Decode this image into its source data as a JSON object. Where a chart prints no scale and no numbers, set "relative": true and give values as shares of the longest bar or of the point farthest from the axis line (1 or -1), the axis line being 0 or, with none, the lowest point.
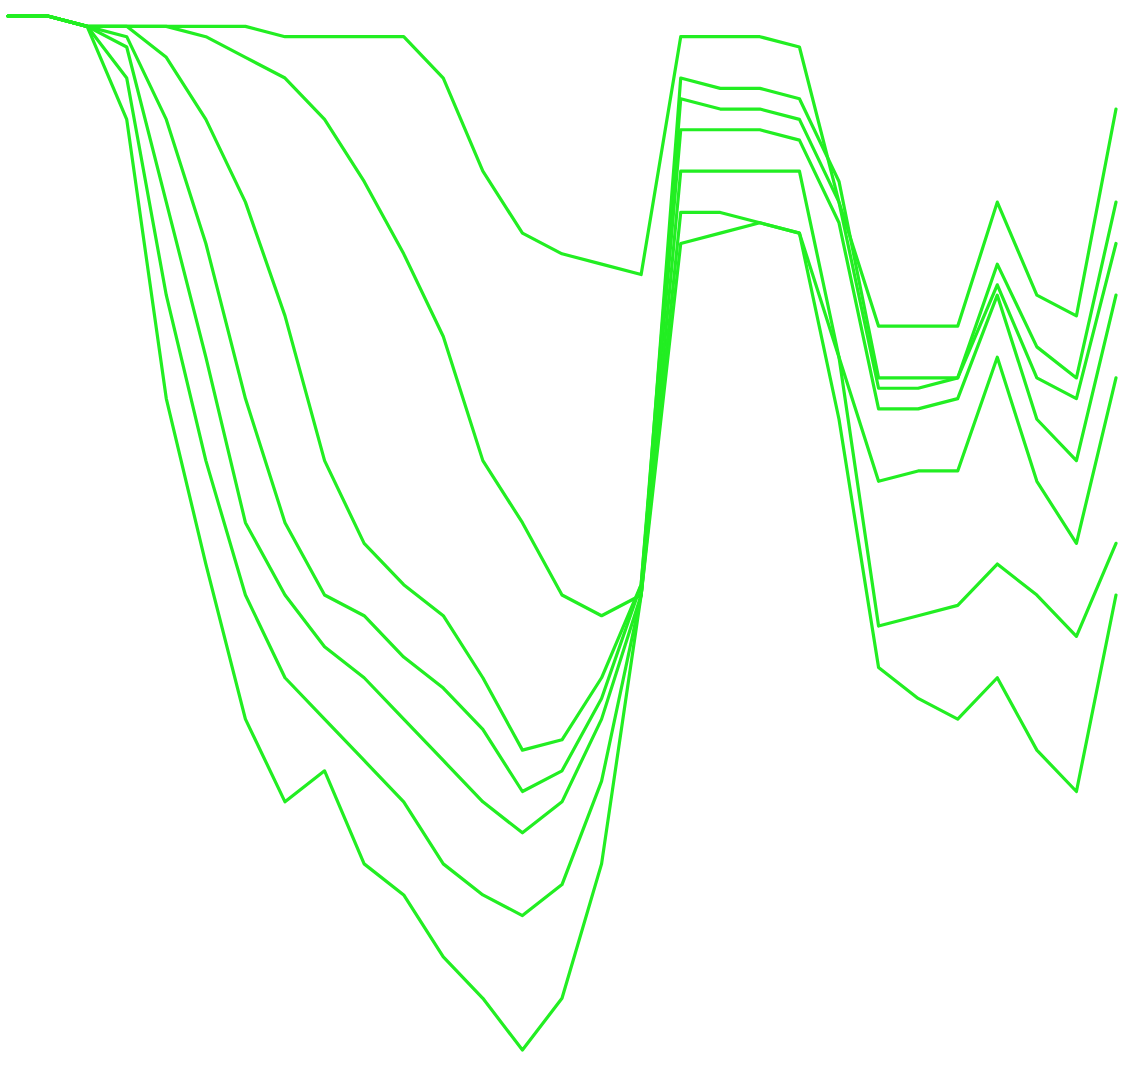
{
  "chart_data": {
    "type": "line",
    "relative": true,
    "categories": [
      null,
      null,
      null,
      null,
      null,
      null,
      null,
      null,
      null,
      null,
      null,
      null,
      null,
      null,
      null,
      null,
      null,
      null,
      null,
      null,
      null,
      null,
      null,
      null,
      null,
      null,
      null,
      null,
      null
    ],
    "series": [
      {
        "color": "#22ee22",
        "values": [
          1.0,
          1.0,
          0.99,
          0.99,
          0.99,
          0.99,
          0.99,
          0.98,
          0.98,
          0.98,
          0.98,
          0.94,
          0.85,
          0.79,
          0.77,
          0.76,
          0.75,
          0.98,
          0.98,
          0.98,
          0.97,
          0.82,
          0.7,
          0.7,
          0.7,
          0.82,
          0.73,
          0.71,
          0.91
        ]
      },
      {
        "color": "#22ee22",
        "values": [
          1.0,
          1.0,
          0.99,
          0.99,
          0.99,
          0.98,
          0.96,
          0.94,
          0.9,
          0.84,
          0.77,
          0.69,
          0.57,
          0.51,
          0.44,
          0.42,
          0.44,
          0.94,
          0.93,
          0.93,
          0.92,
          0.84,
          0.65,
          0.65,
          0.65,
          0.76,
          0.68,
          0.65,
          0.82
        ]
      },
      {
        "color": "#22ee22",
        "values": [
          1.0,
          1.0,
          0.99,
          0.99,
          0.96,
          0.9,
          0.82,
          0.71,
          0.57,
          0.49,
          0.45,
          0.42,
          0.36,
          0.29,
          0.3,
          0.36,
          0.45,
          0.92,
          0.91,
          0.91,
          0.9,
          0.82,
          0.64,
          0.64,
          0.65,
          0.74,
          0.65,
          0.63,
          0.78
        ]
      },
      {
        "color": "#22ee22",
        "values": [
          1.0,
          1.0,
          0.99,
          0.98,
          0.9,
          0.78,
          0.63,
          0.51,
          0.44,
          0.42,
          0.38,
          0.35,
          0.31,
          0.25,
          0.27,
          0.34,
          0.45,
          0.89,
          0.89,
          0.89,
          0.88,
          0.8,
          0.62,
          0.62,
          0.63,
          0.73,
          0.61,
          0.57,
          0.73
        ]
      },
      {
        "color": "#22ee22",
        "values": [
          1.0,
          1.0,
          0.99,
          0.97,
          0.82,
          0.67,
          0.51,
          0.44,
          0.39,
          0.36,
          0.32,
          0.28,
          0.24,
          0.21,
          0.24,
          0.32,
          0.44,
          0.85,
          0.85,
          0.85,
          0.85,
          0.67,
          0.55,
          0.56,
          0.56,
          0.67,
          0.55,
          0.49,
          0.65
        ]
      },
      {
        "color": "#22ee22",
        "values": [
          1.0,
          1.0,
          0.99,
          0.94,
          0.73,
          0.57,
          0.44,
          0.36,
          0.32,
          0.28,
          0.24,
          0.18,
          0.15,
          0.13,
          0.16,
          0.26,
          0.44,
          0.81,
          0.81,
          0.8,
          0.79,
          0.67,
          0.41,
          0.42,
          0.43,
          0.47,
          0.44,
          0.4,
          0.49
        ]
      },
      {
        "color": "#22ee22",
        "values": [
          1.0,
          1.0,
          0.99,
          0.9,
          0.63,
          0.47,
          0.32,
          0.24,
          0.27,
          0.18,
          0.15,
          0.09,
          0.05,
          0,
          0.05,
          0.18,
          0.44,
          0.78,
          0.79,
          0.8,
          0.79,
          0.61,
          0.37,
          0.34,
          0.32,
          0.36,
          0.29,
          0.25,
          0.44
        ]
      }
    ]
  }
}
